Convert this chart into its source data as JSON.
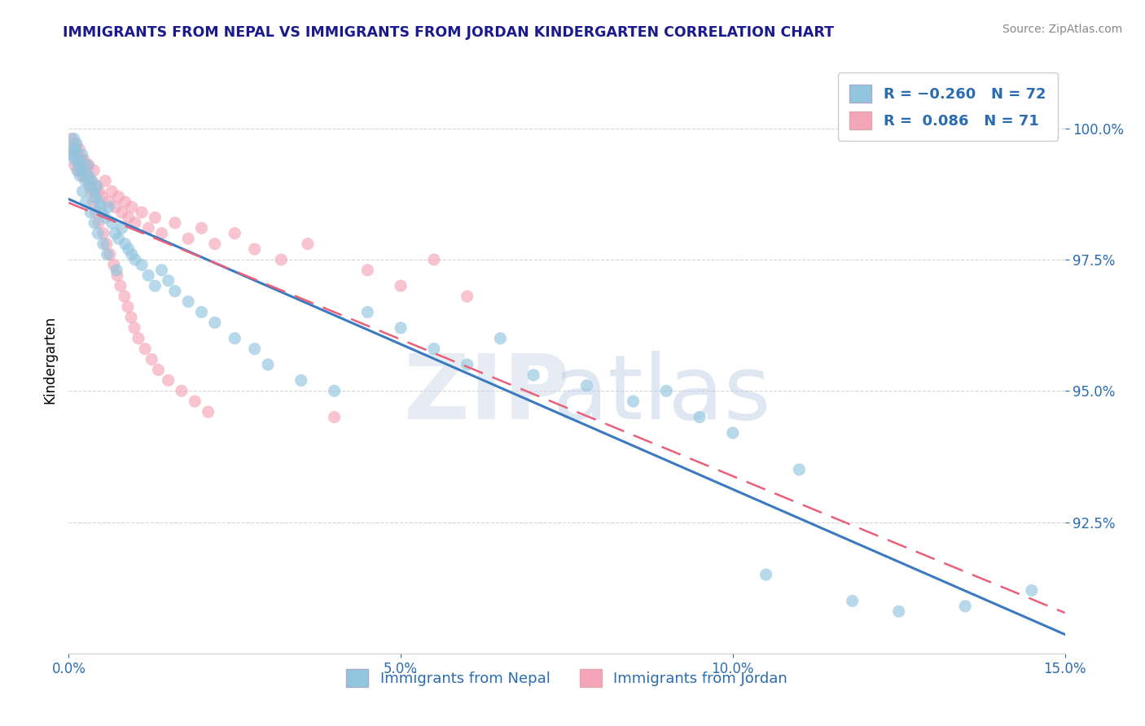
{
  "title": "IMMIGRANTS FROM NEPAL VS IMMIGRANTS FROM JORDAN KINDERGARTEN CORRELATION CHART",
  "source": "Source: ZipAtlas.com",
  "ylabel": "Kindergarten",
  "xlim": [
    0.0,
    15.0
  ],
  "ylim": [
    90.0,
    101.2
  ],
  "xticks": [
    0.0,
    5.0,
    10.0,
    15.0
  ],
  "xtick_labels": [
    "0.0%",
    "5.0%",
    "10.0%",
    "15.0%"
  ],
  "yticks": [
    92.5,
    95.0,
    97.5,
    100.0
  ],
  "ytick_labels": [
    "92.5%",
    "95.0%",
    "97.5%",
    "100.0%"
  ],
  "legend_labels": [
    "Immigrants from Nepal",
    "Immigrants from Jordan"
  ],
  "blue_color": "#92c5de",
  "pink_color": "#f4a5b8",
  "blue_line_color": "#3a7bbf",
  "pink_line_color": "#e8607a",
  "title_color": "#1a1a8c",
  "axis_color": "#2b6cb0",
  "nepal_x": [
    0.05,
    0.08,
    0.1,
    0.12,
    0.15,
    0.18,
    0.2,
    0.22,
    0.25,
    0.28,
    0.3,
    0.32,
    0.35,
    0.38,
    0.4,
    0.42,
    0.45,
    0.48,
    0.5,
    0.55,
    0.6,
    0.65,
    0.7,
    0.75,
    0.8,
    0.85,
    0.9,
    0.95,
    1.0,
    1.1,
    1.2,
    1.3,
    1.4,
    1.5,
    1.6,
    1.8,
    2.0,
    2.2,
    2.5,
    2.8,
    3.0,
    3.5,
    4.0,
    4.5,
    5.0,
    5.5,
    6.0,
    6.5,
    7.0,
    7.8,
    8.5,
    9.0,
    9.5,
    10.0,
    10.5,
    11.0,
    11.8,
    12.5,
    13.5,
    14.5,
    0.06,
    0.09,
    0.13,
    0.17,
    0.21,
    0.26,
    0.33,
    0.39,
    0.44,
    0.52,
    0.58,
    0.72
  ],
  "nepal_y": [
    99.5,
    99.8,
    99.6,
    99.7,
    99.4,
    99.3,
    99.5,
    99.2,
    99.0,
    99.3,
    99.1,
    98.9,
    99.0,
    98.8,
    98.7,
    98.9,
    98.6,
    98.5,
    98.4,
    98.3,
    98.5,
    98.2,
    98.0,
    97.9,
    98.1,
    97.8,
    97.7,
    97.6,
    97.5,
    97.4,
    97.2,
    97.0,
    97.3,
    97.1,
    96.9,
    96.7,
    96.5,
    96.3,
    96.0,
    95.8,
    95.5,
    95.2,
    95.0,
    96.5,
    96.2,
    95.8,
    95.5,
    96.0,
    95.3,
    95.1,
    94.8,
    95.0,
    94.5,
    94.2,
    91.5,
    93.5,
    91.0,
    90.8,
    90.9,
    91.2,
    99.6,
    99.4,
    99.2,
    99.1,
    98.8,
    98.6,
    98.4,
    98.2,
    98.0,
    97.8,
    97.6,
    97.3
  ],
  "jordan_x": [
    0.04,
    0.07,
    0.1,
    0.13,
    0.16,
    0.2,
    0.23,
    0.27,
    0.3,
    0.34,
    0.38,
    0.42,
    0.46,
    0.5,
    0.55,
    0.6,
    0.65,
    0.7,
    0.75,
    0.8,
    0.85,
    0.9,
    0.95,
    1.0,
    1.1,
    1.2,
    1.3,
    1.4,
    1.6,
    1.8,
    2.0,
    2.2,
    2.5,
    2.8,
    3.2,
    3.6,
    4.0,
    4.5,
    5.0,
    5.5,
    6.0,
    0.06,
    0.09,
    0.12,
    0.15,
    0.19,
    0.22,
    0.26,
    0.29,
    0.33,
    0.37,
    0.41,
    0.45,
    0.52,
    0.57,
    0.62,
    0.68,
    0.73,
    0.78,
    0.84,
    0.89,
    0.94,
    0.99,
    1.05,
    1.15,
    1.25,
    1.35,
    1.5,
    1.7,
    1.9,
    2.1
  ],
  "jordan_y": [
    99.8,
    99.5,
    99.7,
    99.4,
    99.6,
    99.2,
    99.4,
    99.1,
    99.3,
    99.0,
    99.2,
    98.9,
    98.8,
    98.7,
    99.0,
    98.6,
    98.8,
    98.5,
    98.7,
    98.4,
    98.6,
    98.3,
    98.5,
    98.2,
    98.4,
    98.1,
    98.3,
    98.0,
    98.2,
    97.9,
    98.1,
    97.8,
    98.0,
    97.7,
    97.5,
    97.8,
    94.5,
    97.3,
    97.0,
    97.5,
    96.8,
    99.6,
    99.3,
    99.5,
    99.2,
    99.4,
    99.1,
    99.3,
    99.0,
    98.8,
    98.6,
    98.4,
    98.2,
    98.0,
    97.8,
    97.6,
    97.4,
    97.2,
    97.0,
    96.8,
    96.6,
    96.4,
    96.2,
    96.0,
    95.8,
    95.6,
    95.4,
    95.2,
    95.0,
    94.8,
    94.6
  ]
}
